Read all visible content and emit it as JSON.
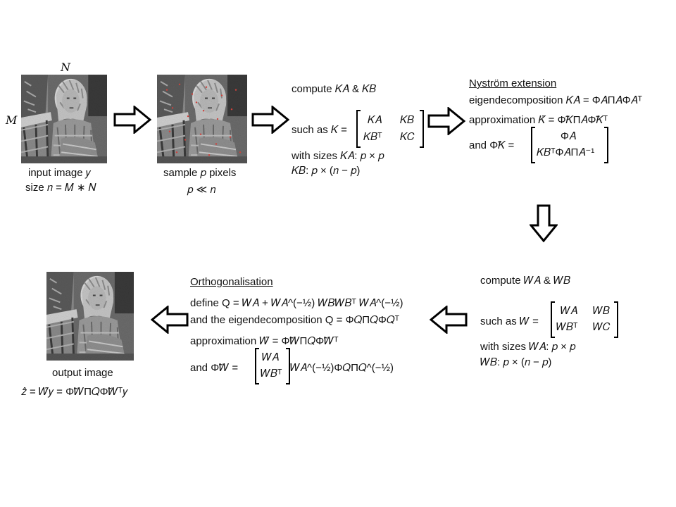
{
  "step1": {
    "dim_n": "N",
    "dim_m": "M",
    "caption_line1": "input image 𝑦",
    "caption_line2": "size 𝑛 = 𝑀 ∗ 𝑁"
  },
  "step2": {
    "caption_line1": "sample 𝑝 pixels",
    "caption_line2": "𝑝 ≪ 𝑛"
  },
  "step3": {
    "line1": "compute 𝐾𝐴 & 𝐾𝐵",
    "line2_prefix": "such as 𝐾 =",
    "matrix": [
      "𝐾𝐴",
      "𝐾𝐵",
      "𝐾𝐵ᵀ",
      "𝐾𝐶"
    ],
    "line3": "with sizes 𝐾𝐴: 𝑝 × 𝑝",
    "line4": "𝐾𝐵: 𝑝 × (𝑛 − 𝑝)"
  },
  "step4": {
    "title": "Nyström extension",
    "line1": "eigendecomposition 𝐾𝐴 = Φ𝐴Π𝐴Φ𝐴ᵀ",
    "line2": "approximation 𝐾̃ = Φ̃𝐾Π𝐴Φ̃𝐾ᵀ",
    "line3_prefix": "and Φ̃𝐾 =",
    "matrix": [
      "Φ𝐴",
      "𝐾𝐵ᵀΦ𝐴Π𝐴⁻¹"
    ]
  },
  "step5": {
    "line1": "compute 𝑊𝐴 & 𝑊𝐵",
    "line2_prefix": "such as 𝑊 =",
    "matrix": [
      "𝑊𝐴",
      "𝑊𝐵",
      "𝑊𝐵ᵀ",
      "𝑊𝐶"
    ],
    "line3": "with sizes 𝑊𝐴: 𝑝 × 𝑝",
    "line4": "𝑊𝐵: 𝑝 × (𝑛 − 𝑝)"
  },
  "step6": {
    "title": "Orthogonalisation",
    "line1": "define Q = 𝑊𝐴 + 𝑊𝐴^(−½) 𝑊𝐵𝑊𝐵ᵀ 𝑊𝐴^(−½)",
    "line2": "and the eigendecomposition Q = Φ𝑄Π𝑄Φ𝑄ᵀ",
    "line3": "approximation 𝑊̃ = Φ̃𝑊Π𝑄Φ̃𝑊ᵀ",
    "line4_prefix": "and Φ̃𝑊 =",
    "matrix": [
      "𝑊𝐴",
      "𝑊𝐵ᵀ"
    ],
    "line4_suffix": "𝑊𝐴^(−½)Φ𝑄Π𝑄^(−½)"
  },
  "step7": {
    "caption_line1": "output image",
    "caption_line2": "𝑧̂ = 𝑊̃𝑦 = Φ̃𝑊Π𝑄Φ̃𝑊ᵀ𝑦"
  }
}
